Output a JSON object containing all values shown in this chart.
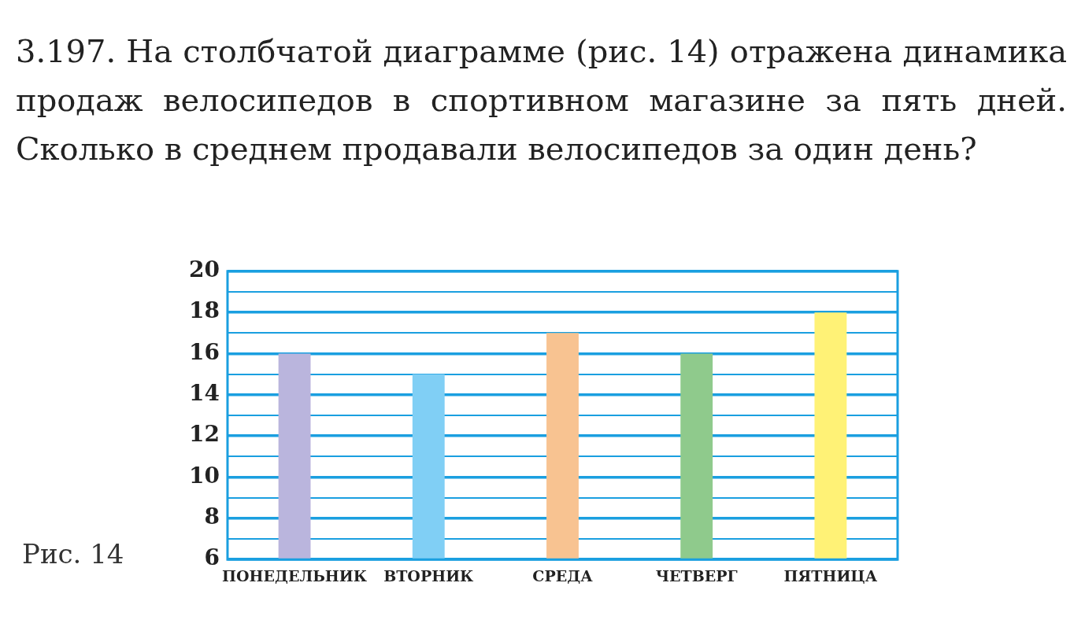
{
  "chart_data": {
    "type": "bar",
    "title": "3.197. На столбчатой диаграмме (рис. 14) отражена динамика продаж велосипедов в спортивном магазине за пять дней. Сколько в среднем продавали велосипедов за один день?",
    "annotations": [
      "Рис. 14"
    ],
    "categories": [
      "ПОНЕДЕЛЬНИК",
      "ВТОРНИК",
      "СРЕДА",
      "ЧЕТВЕРГ",
      "ПЯТНИЦА"
    ],
    "values": [
      16,
      15,
      17,
      16,
      18
    ],
    "colors": [
      "#bab5dd",
      "#80cff5",
      "#f8c391",
      "#8fca8c",
      "#fff276"
    ],
    "ylim": [
      6,
      20
    ],
    "yticks": [
      6,
      {
        "value": 7,
        "label": null
      },
      8,
      {
        "value": 9,
        "label": null
      },
      10,
      {
        "value": 11,
        "label": null
      },
      12,
      {
        "value": 13,
        "label": null
      },
      14,
      {
        "value": 15,
        "label": null
      },
      16,
      {
        "value": 17,
        "label": null
      },
      18,
      {
        "value": 19,
        "label": null
      },
      20
    ],
    "grid": "y",
    "legend": false
  }
}
